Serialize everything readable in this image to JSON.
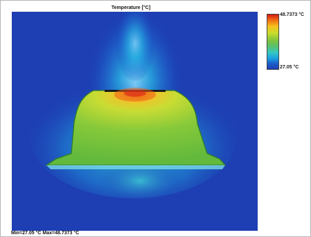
{
  "figure": {
    "title": "Temperature [°C]",
    "colorbar": {
      "max_label": "48.7373 °C",
      "min_label": "27.05 °C"
    },
    "footer": "Min=27.05 °C  Max=48.7373 °C"
  },
  "colors": {
    "background_field": "#1d3fb3",
    "body_fill": "#6fbf3a",
    "hotspot": "#e25a12",
    "heat_plume": "#30c8d8"
  }
}
